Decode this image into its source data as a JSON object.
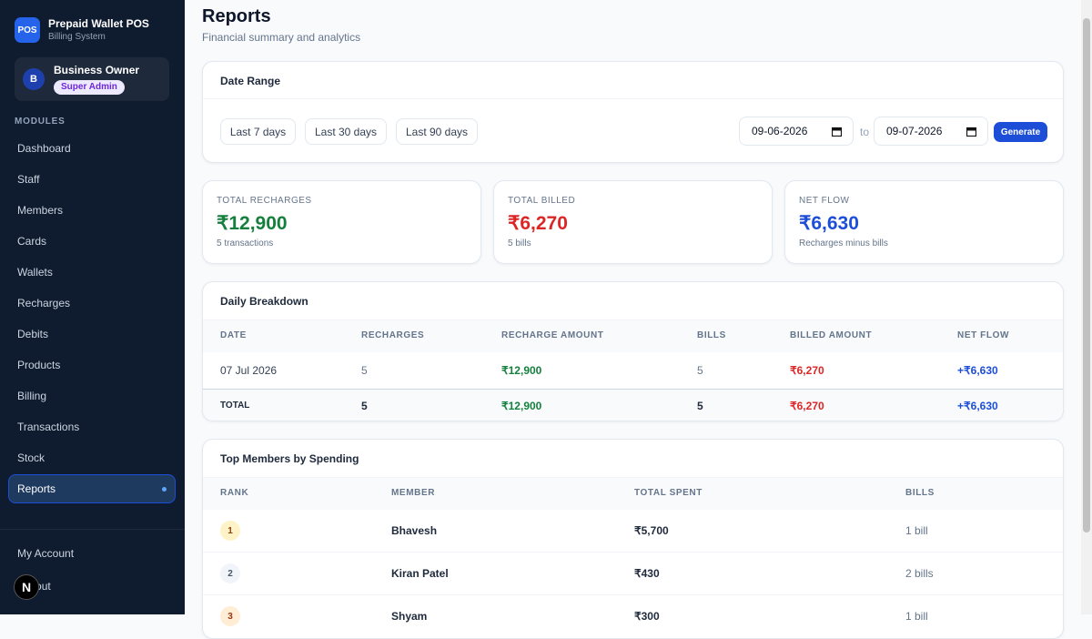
{
  "sidebar": {
    "logo": "POS",
    "title": "Prepaid Wallet POS",
    "subtitle": "Billing System",
    "user": {
      "initial": "B",
      "name": "Business Owner",
      "role": "Super Admin"
    },
    "section": "MODULES",
    "nav": [
      "Dashboard",
      "Staff",
      "Members",
      "Cards",
      "Wallets",
      "Recharges",
      "Debits",
      "Products",
      "Billing",
      "Transactions",
      "Stock",
      "Reports"
    ],
    "active": "Reports",
    "footer": [
      "My Account",
      "Logout"
    ]
  },
  "header": {
    "title": "Reports",
    "subtitle": "Financial summary and analytics"
  },
  "date_range": {
    "title": "Date Range",
    "presets": [
      "Last 7 days",
      "Last 30 days",
      "Last 90 days"
    ],
    "from": "09-06-2026",
    "to_label": "to",
    "to": "09-07-2026",
    "button": "Generate"
  },
  "stats": [
    {
      "label": "TOTAL RECHARGES",
      "value": "₹12,900",
      "note": "5 transactions",
      "color": "#15803d"
    },
    {
      "label": "TOTAL BILLED",
      "value": "₹6,270",
      "note": "5 bills",
      "color": "#dc2626"
    },
    {
      "label": "NET FLOW",
      "value": "₹6,630",
      "note": "Recharges minus bills",
      "color": "#1d4ed8"
    }
  ],
  "daily": {
    "title": "Daily Breakdown",
    "columns": [
      "DATE",
      "RECHARGES",
      "RECHARGE AMOUNT",
      "BILLS",
      "BILLED AMOUNT",
      "NET FLOW"
    ],
    "rows": [
      [
        "07 Jul 2026",
        "5",
        "₹12,900",
        "5",
        "₹6,270",
        "+₹6,630"
      ]
    ],
    "total": [
      "TOTAL",
      "5",
      "₹12,900",
      "5",
      "₹6,270",
      "+₹6,630"
    ]
  },
  "top_members": {
    "title": "Top Members by Spending",
    "columns": [
      "RANK",
      "MEMBER",
      "TOTAL SPENT",
      "BILLS"
    ],
    "rows": [
      [
        "1",
        "Bhavesh",
        "₹5,700",
        "1 bill"
      ],
      [
        "2",
        "Kiran Patel",
        "₹430",
        "2 bills"
      ],
      [
        "3",
        "Shyam",
        "₹300",
        "1 bill"
      ]
    ]
  }
}
